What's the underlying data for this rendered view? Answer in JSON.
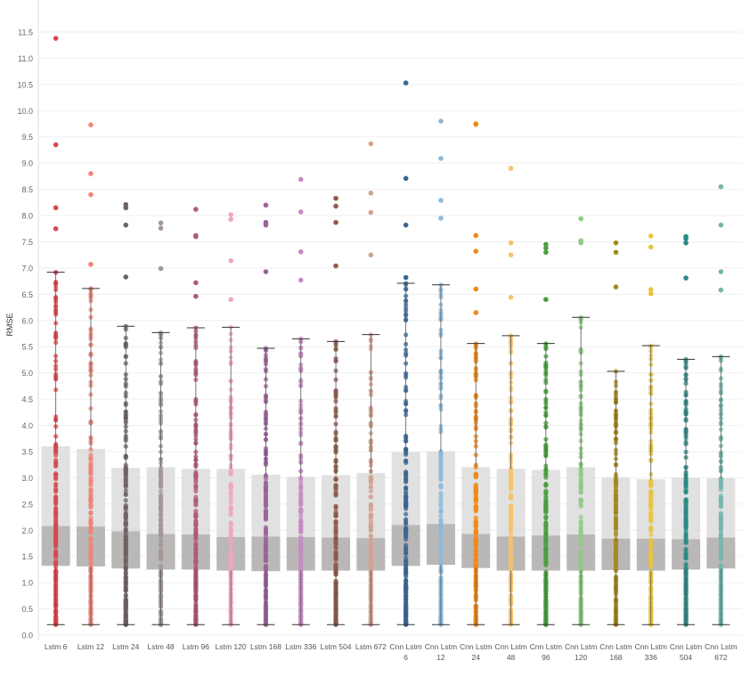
{
  "chart_data": {
    "type": "boxplot",
    "ylabel": "RMSE",
    "ylim": [
      0,
      11.5
    ],
    "yticks": [
      "0.0",
      "0.5",
      "1.0",
      "1.5",
      "2.0",
      "2.5",
      "3.0",
      "3.5",
      "4.0",
      "4.5",
      "5.0",
      "5.5",
      "6.0",
      "6.5",
      "7.0",
      "7.5",
      "8.0",
      "8.5",
      "9.0",
      "9.5",
      "10.0",
      "10.5",
      "11.0",
      "11.5"
    ],
    "grid": true,
    "series": [
      {
        "label": [
          "Lstm 6"
        ],
        "color": "#d6484f",
        "min": 0.2,
        "q1": 1.32,
        "median": 2.08,
        "q3": 3.6,
        "whisker_hi": 6.92,
        "outliers": [
          11.38,
          9.35,
          8.15,
          7.75
        ]
      },
      {
        "label": [
          "Lstm 12"
        ],
        "color": "#f0837a",
        "min": 0.2,
        "q1": 1.31,
        "median": 2.07,
        "q3": 3.55,
        "whisker_hi": 6.61,
        "outliers": [
          9.73,
          8.8,
          8.4,
          7.07
        ]
      },
      {
        "label": [
          "Lstm 24"
        ],
        "color": "#6e6261",
        "min": 0.2,
        "q1": 1.27,
        "median": 1.98,
        "q3": 3.19,
        "whisker_hi": 5.89,
        "outliers": [
          8.21,
          8.15,
          7.82,
          6.83
        ]
      },
      {
        "label": [
          "Lstm 48"
        ],
        "color": "#a39897",
        "min": 0.2,
        "q1": 1.25,
        "median": 1.93,
        "q3": 3.2,
        "whisker_hi": 5.77,
        "outliers": [
          7.86,
          7.76,
          6.99
        ]
      },
      {
        "label": [
          "Lstm 96"
        ],
        "color": "#b05a7a",
        "min": 0.2,
        "q1": 1.25,
        "median": 1.92,
        "q3": 3.17,
        "whisker_hi": 5.86,
        "outliers": [
          8.12,
          7.62,
          7.6,
          6.72,
          6.46
        ]
      },
      {
        "label": [
          "Lstm 120"
        ],
        "color": "#f0a6c0",
        "min": 0.2,
        "q1": 1.23,
        "median": 1.87,
        "q3": 3.17,
        "whisker_hi": 5.87,
        "outliers": [
          8.02,
          7.93,
          7.14,
          6.4
        ]
      },
      {
        "label": [
          "Lstm 168"
        ],
        "color": "#9a649a",
        "min": 0.2,
        "q1": 1.22,
        "median": 1.88,
        "q3": 3.06,
        "whisker_hi": 5.47,
        "outliers": [
          8.2,
          7.87,
          7.82,
          6.93
        ]
      },
      {
        "label": [
          "Lstm 336"
        ],
        "color": "#c48cc2",
        "min": 0.2,
        "q1": 1.23,
        "median": 1.87,
        "q3": 3.02,
        "whisker_hi": 5.65,
        "outliers": [
          8.69,
          8.07,
          7.31,
          6.77
        ]
      },
      {
        "label": [
          "Lstm 504"
        ],
        "color": "#8e5a4a",
        "min": 0.2,
        "q1": 1.23,
        "median": 1.86,
        "q3": 3.05,
        "whisker_hi": 5.6,
        "outliers": [
          8.33,
          8.18,
          7.87,
          7.04
        ]
      },
      {
        "label": [
          "Lstm 672"
        ],
        "color": "#d3a290",
        "min": 0.2,
        "q1": 1.23,
        "median": 1.85,
        "q3": 3.09,
        "whisker_hi": 5.73,
        "outliers": [
          9.37,
          8.43,
          8.06,
          7.25
        ]
      },
      {
        "label": [
          "Cnn Lstm",
          "6"
        ],
        "color": "#3b6693",
        "min": 0.2,
        "q1": 1.32,
        "median": 2.1,
        "q3": 3.49,
        "whisker_hi": 6.71,
        "outliers": [
          10.53,
          8.71,
          7.82,
          6.82
        ]
      },
      {
        "label": [
          "Cnn Lstm",
          "12"
        ],
        "color": "#8cbadb",
        "min": 0.2,
        "q1": 1.34,
        "median": 2.12,
        "q3": 3.5,
        "whisker_hi": 6.68,
        "outliers": [
          9.8,
          9.09,
          8.29,
          7.95
        ]
      },
      {
        "label": [
          "Cnn Lstm",
          "24"
        ],
        "color": "#ef8a17",
        "min": 0.2,
        "q1": 1.28,
        "median": 1.93,
        "q3": 3.2,
        "whisker_hi": 5.56,
        "outliers": [
          9.75,
          9.74,
          7.62,
          7.32,
          6.6,
          6.15
        ]
      },
      {
        "label": [
          "Cnn Lstm",
          "48"
        ],
        "color": "#f6c36a",
        "min": 0.2,
        "q1": 1.23,
        "median": 1.88,
        "q3": 3.17,
        "whisker_hi": 5.71,
        "outliers": [
          8.9,
          7.48,
          7.25,
          6.44
        ]
      },
      {
        "label": [
          "Cnn Lstm",
          "96"
        ],
        "color": "#4a9e3f",
        "min": 0.2,
        "q1": 1.23,
        "median": 1.9,
        "q3": 3.15,
        "whisker_hi": 5.56,
        "outliers": [
          7.45,
          7.38,
          7.3,
          6.4
        ]
      },
      {
        "label": [
          "Cnn Lstm",
          "120"
        ],
        "color": "#8fcb84",
        "min": 0.2,
        "q1": 1.23,
        "median": 1.92,
        "q3": 3.2,
        "whisker_hi": 6.06,
        "outliers": [
          7.94,
          7.52,
          7.48
        ]
      },
      {
        "label": [
          "Cnn Lstm",
          "168"
        ],
        "color": "#a48a1e",
        "min": 0.2,
        "q1": 1.24,
        "median": 1.84,
        "q3": 3.01,
        "whisker_hi": 5.03,
        "outliers": [
          7.48,
          7.3,
          6.64
        ]
      },
      {
        "label": [
          "Cnn Lstm",
          "336"
        ],
        "color": "#e8c440",
        "min": 0.2,
        "q1": 1.23,
        "median": 1.84,
        "q3": 2.97,
        "whisker_hi": 5.52,
        "outliers": [
          7.61,
          7.4,
          6.59,
          6.51
        ]
      },
      {
        "label": [
          "Cnn Lstm",
          "504"
        ],
        "color": "#2b8a86",
        "min": 0.2,
        "q1": 1.25,
        "median": 1.83,
        "q3": 3.0,
        "whisker_hi": 5.26,
        "outliers": [
          7.6,
          7.56,
          7.48,
          6.81
        ]
      },
      {
        "label": [
          "Cnn Lstm",
          "672"
        ],
        "color": "#74b7ad",
        "min": 0.2,
        "q1": 1.27,
        "median": 1.86,
        "q3": 2.99,
        "whisker_hi": 5.31,
        "outliers": [
          8.55,
          7.82,
          6.93,
          6.58
        ]
      }
    ]
  }
}
